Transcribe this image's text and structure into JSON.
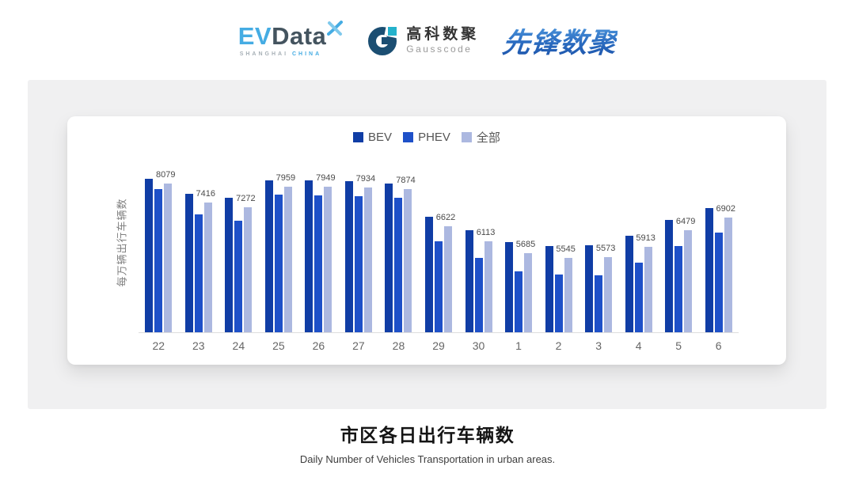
{
  "header": {
    "evdata": {
      "ev": "EV",
      "data": "Data",
      "sub_left": "SHANGHAI",
      "sub_right": "CHINA"
    },
    "gausscode": {
      "cn": "高科数聚",
      "en": "Gausscode"
    },
    "xianfeng": {
      "text": "先锋数聚"
    }
  },
  "chart_data": {
    "type": "bar",
    "title": "市区各日出行车辆数",
    "subtitle": "Daily Number of Vehicles Transportation in urban areas.",
    "ylabel": "每万辆出行车辆数",
    "categories": [
      "22",
      "23",
      "24",
      "25",
      "26",
      "27",
      "28",
      "29",
      "30",
      "1",
      "2",
      "3",
      "4",
      "5",
      "6"
    ],
    "series": [
      {
        "key": "bev",
        "name": "BEV",
        "color": "#103DA5",
        "estimated_from_pixels": true,
        "values": [
          8240,
          7705,
          7580,
          8185,
          8175,
          8155,
          8070,
          6940,
          6475,
          6085,
          5945,
          5970,
          6285,
          6815,
          7240
        ]
      },
      {
        "key": "phev",
        "name": "PHEV",
        "color": "#1E50C8",
        "estimated_from_pixels": true,
        "values": [
          7880,
          7005,
          6800,
          7680,
          7665,
          7635,
          7580,
          6105,
          5545,
          5085,
          4970,
          4950,
          5375,
          5950,
          6395
        ]
      },
      {
        "key": "all",
        "name": "全部",
        "color": "#ACB8E0",
        "labels": true,
        "values": [
          8079,
          7416,
          7272,
          7959,
          7949,
          7934,
          7874,
          6622,
          6113,
          5685,
          5545,
          5573,
          5913,
          6479,
          6902
        ]
      }
    ],
    "ylim": [
      3000,
      8500
    ],
    "grid": false,
    "legend_position": "top",
    "value_labels_series": "全部"
  },
  "colors": {
    "panel_gray": "#F0F0F1",
    "axis_line": "#DDDDDD",
    "evdata_blue": "#45ACE3",
    "evdata_slate": "#44545F",
    "gauss_navy": "#1B4E72",
    "gauss_teal": "#24B2CC",
    "xianfeng_blue": "#2B6CC0"
  }
}
